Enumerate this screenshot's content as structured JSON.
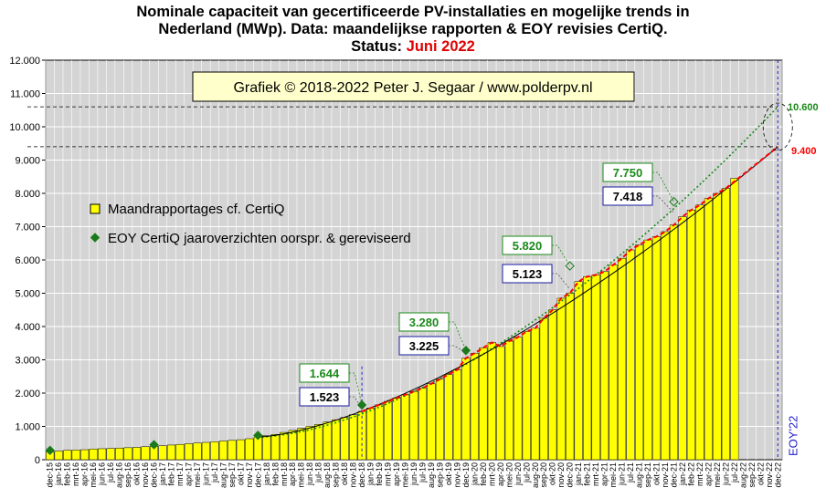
{
  "title": {
    "line1": "Nominale capaciteit van gecertificeerde PV-installaties en mogelijke trends in",
    "line2": "Nederland (MWp). Data: maandelijkse rapporten & EOY revisies CertiQ.",
    "status_label": "Status:",
    "status_month": "Juni 2022"
  },
  "copyright": "Grafiek © 2018-2022 Peter J. Segaar / www.polderpv.nl",
  "eoy_label": "EOY'22",
  "colors": {
    "bar_fill": "#ffff00",
    "bar_stroke": "#000000",
    "plot_bg": "#d4d4d4",
    "eoy_marker": "#1a7a1a",
    "trend_red": "#ff0000",
    "trend_green": "#1a8a1a",
    "trend_black": "#000000",
    "eoy_line": "#2222cc"
  },
  "chart_data": {
    "type": "bar",
    "ylim": [
      0,
      12000
    ],
    "yticks": [
      "0",
      "1.000",
      "2.000",
      "3.000",
      "4.000",
      "5.000",
      "6.000",
      "7.000",
      "8.000",
      "9.000",
      "10.000",
      "11.000",
      "12.000"
    ],
    "categories": [
      "dec-15",
      "jan-16",
      "feb-16",
      "mrt-16",
      "apr-16",
      "mei-16",
      "jun-16",
      "jul-16",
      "aug-16",
      "sep-16",
      "okt-16",
      "nov-16",
      "dec-16",
      "jan-17",
      "feb-17",
      "mrt-17",
      "apr-17",
      "mei-17",
      "jun-17",
      "jul-17",
      "aug-17",
      "sep-17",
      "okt-17",
      "nov-17",
      "dec-17",
      "jan-18",
      "feb-18",
      "mrt-18",
      "apr-18",
      "mei-18",
      "jun-18",
      "jul-18",
      "aug-18",
      "sep-18",
      "okt-18",
      "nov-18",
      "dec-18",
      "jan-19",
      "feb-19",
      "mrt-19",
      "apr-19",
      "mei-19",
      "jun-19",
      "jul-19",
      "aug-19",
      "sep-19",
      "okt-19",
      "nov-19",
      "dec-19",
      "jan-20",
      "feb-20",
      "mrt-20",
      "apr-20",
      "mei-20",
      "jun-20",
      "jul-20",
      "aug-20",
      "sep-20",
      "okt-20",
      "nov-20",
      "dec-20",
      "jan-21",
      "feb-21",
      "mrt-21",
      "apr-21",
      "mei-21",
      "jun-21",
      "jul-21",
      "aug-21",
      "sep-21",
      "okt-21",
      "nov-21",
      "dec-21",
      "jan-22",
      "feb-22",
      "mrt-22",
      "apr-22",
      "mei-22",
      "jun-22",
      "jul-22",
      "aug-22",
      "sep-22",
      "okt-22",
      "nov-22",
      "dec-22"
    ],
    "series": [
      {
        "name": "Maandrapportages cf. CertiQ",
        "values": [
          230,
          260,
          280,
          290,
          300,
          320,
          330,
          340,
          350,
          360,
          370,
          390,
          400,
          420,
          440,
          460,
          480,
          500,
          520,
          540,
          560,
          580,
          600,
          630,
          680,
          720,
          760,
          820,
          880,
          940,
          1000,
          1060,
          1130,
          1200,
          1270,
          1350,
          1450,
          1550,
          1650,
          1750,
          1850,
          1950,
          2050,
          2150,
          2280,
          2420,
          2560,
          2700,
          3050,
          3200,
          3360,
          3520,
          3400,
          3560,
          3680,
          3850,
          3950,
          4250,
          4500,
          4850,
          5000,
          5350,
          5500,
          5550,
          5650,
          5850,
          6050,
          6300,
          6450,
          6600,
          6700,
          6850,
          7050,
          7300,
          7500,
          7650,
          7850,
          8000,
          8150,
          8450,
          null,
          null,
          null,
          null,
          null
        ]
      }
    ],
    "eoy_series": {
      "name": "EOY CertiQ jaaroverzichten oorspr. & gereviseerd",
      "points": [
        {
          "x": "dec-15",
          "original": 230,
          "revised": 280
        },
        {
          "x": "dec-16",
          "original": 400,
          "revised": 450
        },
        {
          "x": "dec-17",
          "original": 680,
          "revised": 730
        },
        {
          "x": "dec-18",
          "original": 1523,
          "revised": 1644
        },
        {
          "x": "dec-19",
          "original": 3225,
          "revised": 3280
        },
        {
          "x": "dec-20",
          "original": 5123,
          "revised": 5820
        },
        {
          "x": "dec-21",
          "original": 7418,
          "revised": 7750
        }
      ]
    },
    "annotations": [
      {
        "label": "1.644",
        "x": "dec-18",
        "value": 1644,
        "kind": "revised"
      },
      {
        "label": "1.523",
        "x": "dec-18",
        "value": 1523,
        "kind": "original"
      },
      {
        "label": "3.280",
        "x": "dec-19",
        "value": 3280,
        "kind": "revised"
      },
      {
        "label": "3.225",
        "x": "dec-19",
        "value": 3225,
        "kind": "original"
      },
      {
        "label": "5.820",
        "x": "dec-20",
        "value": 5820,
        "kind": "revised"
      },
      {
        "label": "5.123",
        "x": "dec-20",
        "value": 5123,
        "kind": "original"
      },
      {
        "label": "7.750",
        "x": "dec-21",
        "value": 7750,
        "kind": "revised"
      },
      {
        "label": "7.418",
        "x": "dec-21",
        "value": 7418,
        "kind": "original"
      }
    ],
    "projections": [
      {
        "label": "10.600",
        "value": 10600,
        "kind": "green"
      },
      {
        "label": "9.400",
        "value": 9400,
        "kind": "red"
      }
    ],
    "legend": [
      "Maandrapportages cf. CertiQ",
      "EOY CertiQ jaaroverzichten oorspr. & gereviseerd"
    ],
    "grid": true
  }
}
